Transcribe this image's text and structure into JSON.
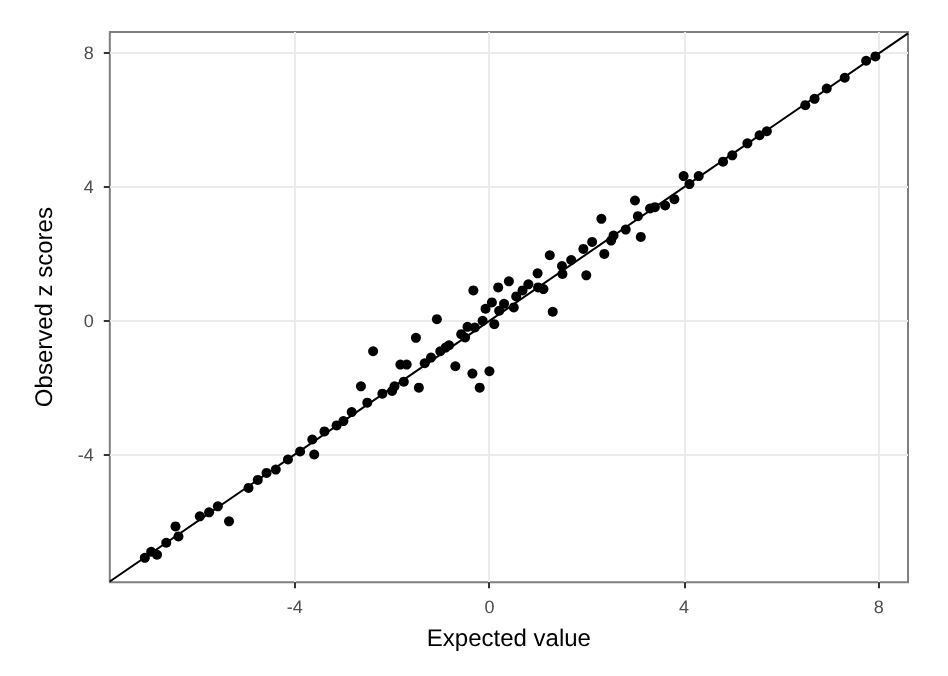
{
  "chart_data": {
    "type": "scatter",
    "xlabel": "Expected value",
    "ylabel": "Observed z scores",
    "xlim": [
      -7.8,
      8.6
    ],
    "ylim": [
      -7.82,
      8.64
    ],
    "xticks": [
      -4,
      0,
      4,
      8
    ],
    "yticks": [
      -4,
      0,
      4,
      8
    ],
    "grid": true,
    "marker": "circle",
    "series": [
      {
        "color": "#000000",
        "x": [
          -7.08,
          -6.95,
          -6.83,
          -6.64,
          -6.45,
          -6.39,
          -5.95,
          -5.76,
          -5.58,
          -5.35,
          -4.95,
          -4.76,
          -4.58,
          -4.39,
          -4.14,
          -3.89,
          -3.6,
          -3.64,
          -3.39,
          -3.14,
          -3,
          -2.83,
          -2.64,
          -2.51,
          -2.39,
          -2.2,
          -2,
          -1.95,
          -1.83,
          -1.7,
          -1.76,
          -1.51,
          -1.45,
          -1.33,
          -1.2,
          -1.08,
          -1.01,
          -0.9,
          -0.83,
          -0.7,
          -0.58,
          -0.5,
          -0.45,
          -0.35,
          -0.33,
          -0.3,
          -0.2,
          -0.14,
          -0.08,
          0,
          0.05,
          0.1,
          0.18,
          0.2,
          0.3,
          0.4,
          0.5,
          0.55,
          0.68,
          0.8,
          0.99,
          1,
          1.11,
          1.24,
          1.3,
          1.49,
          1.5,
          1.68,
          1.93,
          1.99,
          2.11,
          2.3,
          2.36,
          2.5,
          2.55,
          2.8,
          2.99,
          3.05,
          3.11,
          3.3,
          3.4,
          3.61,
          3.8,
          3.99,
          4.11,
          4.3,
          4.8,
          4.99,
          5.3,
          5.55,
          5.7,
          6.49,
          6.68,
          6.93,
          7.3,
          7.74,
          7.93
        ],
        "values": [
          -7.09,
          -6.91,
          -7.0,
          -6.64,
          -6.15,
          -6.45,
          -5.85,
          -5.73,
          -5.55,
          -6.0,
          -5.0,
          -4.76,
          -4.55,
          -4.45,
          -4.15,
          -3.91,
          -4.0,
          -3.55,
          -3.31,
          -3.13,
          -3,
          -2.73,
          -1.96,
          -2.45,
          -0.91,
          -2.18,
          -2.1,
          -1.96,
          -1.31,
          -1.31,
          -1.82,
          -0.51,
          -2.0,
          -1.27,
          -1.1,
          0.05,
          -0.91,
          -0.8,
          -0.73,
          -1.36,
          -0.4,
          -0.5,
          -0.18,
          -1.58,
          0.91,
          -0.2,
          -2.0,
          0,
          0.36,
          -1.51,
          0.55,
          -0.1,
          1.0,
          0.3,
          0.51,
          1.18,
          0.4,
          0.73,
          0.91,
          1.09,
          1.42,
          1,
          0.95,
          1.96,
          0.27,
          1.64,
          1.4,
          1.82,
          2.15,
          1.36,
          2.36,
          3.05,
          2.0,
          2.4,
          2.55,
          2.73,
          3.6,
          3.13,
          2.51,
          3.36,
          3.4,
          3.45,
          3.64,
          4.33,
          4.09,
          4.33,
          4.76,
          4.95,
          5.31,
          5.55,
          5.67,
          6.45,
          6.64,
          6.95,
          7.27,
          7.78,
          7.91
        ]
      },
      {
        "type": "line",
        "color": "#000000",
        "marker": "none",
        "line_style": "solid",
        "x": [
          -7.8,
          8.6
        ],
        "values": [
          -7.8,
          8.6
        ]
      }
    ]
  }
}
